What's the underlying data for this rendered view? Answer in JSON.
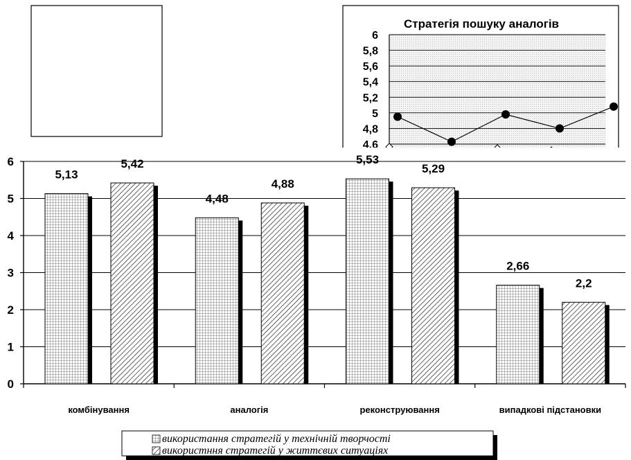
{
  "chart_data": [
    {
      "type": "bar",
      "categories": [
        "комбінування",
        "аналогія",
        "реконструювання",
        "випадкові підстановки"
      ],
      "series": [
        {
          "name": "використання стратегій у технічній творчості",
          "values": [
            5.13,
            4.48,
            5.53,
            2.66
          ]
        },
        {
          "name": "використння стратегій у життєвих ситуаціях",
          "values": [
            5.42,
            4.88,
            5.29,
            2.2
          ]
        }
      ],
      "data_labels": [
        [
          "5,13",
          "4,48",
          "5,53",
          "2,66"
        ],
        [
          "5,42",
          "4,88",
          "5,29",
          "2,2"
        ]
      ],
      "ylim": [
        0,
        6
      ],
      "yticks": [
        "0",
        "1",
        "2",
        "3",
        "4",
        "5",
        "6"
      ],
      "grid": true,
      "legend_position": "bottom",
      "title": "",
      "xlabel": "",
      "ylabel": ""
    },
    {
      "type": "line",
      "title": "Стратегія пошуку аналогів",
      "ylim": [
        4.6,
        6
      ],
      "yticks": [
        "4,6",
        "4,8",
        "5",
        "5,2",
        "5,4",
        "5,6",
        "5,8",
        "6"
      ],
      "grid": true,
      "series": [
        {
          "values": [
            4.95,
            4.63,
            4.98,
            4.8,
            5.08
          ]
        }
      ]
    }
  ]
}
